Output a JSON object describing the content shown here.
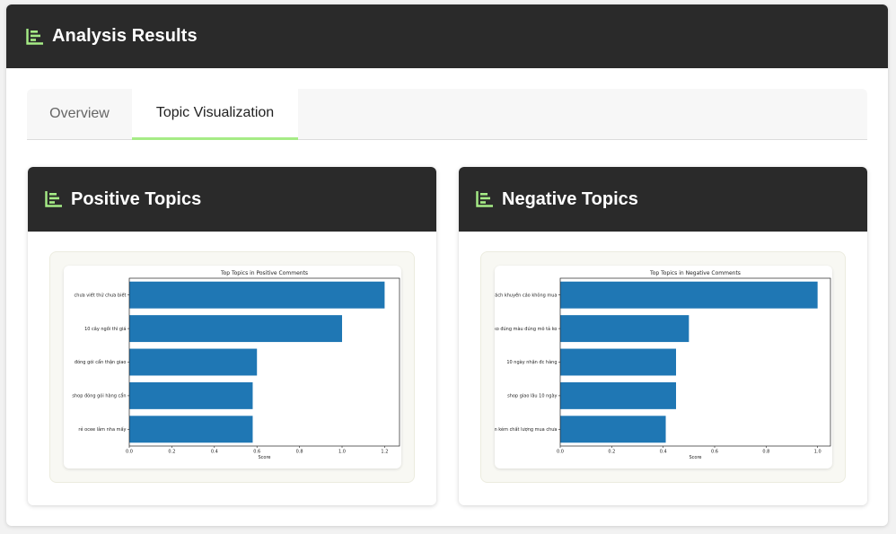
{
  "header": {
    "title": "Analysis Results",
    "icon": "bar-chart-icon",
    "icon_color": "#a6ec86"
  },
  "tabs": [
    {
      "label": "Overview",
      "active": false
    },
    {
      "label": "Topic Visualization",
      "active": true
    }
  ],
  "panels": {
    "positive": {
      "title": "Positive Topics",
      "icon": "bar-chart-icon"
    },
    "negative": {
      "title": "Negative Topics",
      "icon": "bar-chart-icon"
    }
  },
  "chart_data": [
    {
      "type": "bar",
      "orientation": "horizontal",
      "title": "Top Topics in Positive Comments",
      "xlabel": "Score",
      "ylabel": "",
      "xlim": [
        0,
        1.27
      ],
      "xticks": [
        "0.0",
        "0.2",
        "0.4",
        "0.6",
        "0.8",
        "1.0",
        "1.2"
      ],
      "categories": [
        "chưa viết thử chưa biết",
        "10 cây ngồi thì giá",
        "đóng gói cẩn thận giao",
        "shop đóng gói hàng cẩn",
        "rẻ ocee lắm nha mấy"
      ],
      "values": [
        1.2,
        1.0,
        0.6,
        0.58,
        0.58
      ],
      "color": "#1f77b4"
    },
    {
      "type": "bar",
      "orientation": "horizontal",
      "title": "Top Topics in Negative Comments",
      "xlabel": "Score",
      "ylabel": "",
      "xlim": [
        0,
        1.05
      ],
      "xticks": [
        "0.0",
        "0.2",
        "0.4",
        "0.6",
        "0.8",
        "1.0"
      ],
      "categories": [
        "rách khuyến cáo không mua",
        "sốc ko đúng màu đúng mô tả ko",
        "10 ngày nhận đc hàng",
        "shop giao lâu 10 ngày",
        "sản phẩm kém chất lượng mua chưa"
      ],
      "values": [
        1.0,
        0.5,
        0.45,
        0.45,
        0.41
      ],
      "color": "#1f77b4"
    }
  ]
}
